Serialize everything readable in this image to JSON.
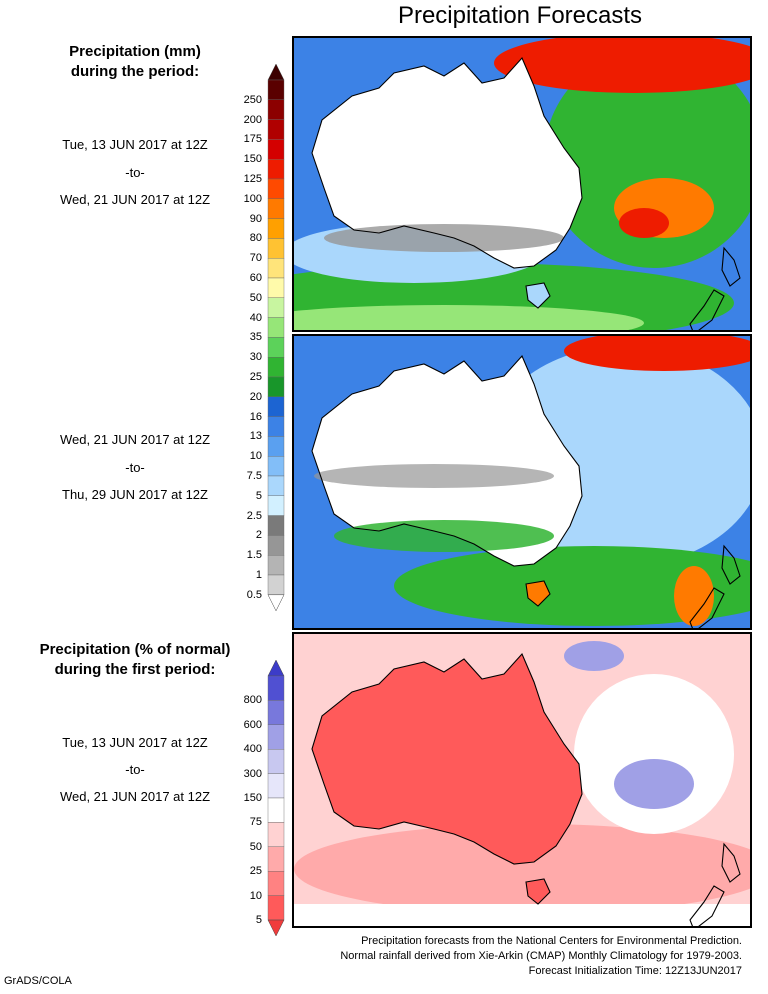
{
  "title": "Precipitation Forecasts",
  "section_amount": {
    "title_line1": "Precipitation (mm)",
    "title_line2": "during the period:"
  },
  "period1": {
    "start": "Tue, 13 JUN 2017 at 12Z",
    "separator": "-to-",
    "end": "Wed, 21 JUN 2017 at 12Z"
  },
  "period2": {
    "start": "Wed, 21 JUN 2017 at 12Z",
    "separator": "-to-",
    "end": "Thu, 29 JUN 2017 at 12Z"
  },
  "section_percent": {
    "title_line1": "Precipitation (% of normal)",
    "title_line2": "during the first period:",
    "start": "Tue, 13 JUN 2017 at 12Z",
    "separator": "-to-",
    "end": "Wed, 21 JUN 2017 at 12Z"
  },
  "amount_scale": {
    "labels": [
      "250",
      "200",
      "175",
      "150",
      "125",
      "100",
      "90",
      "80",
      "70",
      "60",
      "50",
      "40",
      "35",
      "30",
      "25",
      "20",
      "16",
      "13",
      "10",
      "7.5",
      "5",
      "2.5",
      "2",
      "1.5",
      "1",
      "0.5"
    ],
    "colors": [
      "#5a0000",
      "#8c0000",
      "#b00000",
      "#d40000",
      "#ee1c00",
      "#ff4a00",
      "#ff7a00",
      "#ffa000",
      "#ffc232",
      "#ffe47a",
      "#fffaaa",
      "#c8f5a0",
      "#96e678",
      "#5cd25a",
      "#30b432",
      "#18962a",
      "#1c64d2",
      "#3c82e6",
      "#5aa0f0",
      "#82bef8",
      "#aad7fc",
      "#d2f0ff",
      "#7a7a7a",
      "#969696",
      "#b4b4b4",
      "#d2d2d2"
    ],
    "top_arrow_color": "#3c0000",
    "bottom_arrow_color": "#ffffff"
  },
  "percent_scale": {
    "labels": [
      "800",
      "600",
      "400",
      "300",
      "150",
      "75",
      "50",
      "25",
      "10",
      "5"
    ],
    "colors": [
      "#5050d2",
      "#7878dc",
      "#a0a0e6",
      "#c8c8f0",
      "#e6e6fa",
      "#ffffff",
      "#ffd2d2",
      "#ffaaaa",
      "#ff8282",
      "#ff5a5a"
    ],
    "top_arrow_color": "#3c3cc8",
    "bottom_arrow_color": "#f03c3c"
  },
  "footer": {
    "line1": "Precipitation forecasts from the National Centers for Environmental Prediction.",
    "line2": "Normal rainfall derived from Xie-Arkin (CMAP) Monthly Climatology for 1979-2003.",
    "line3": "Forecast Initialization Time: 12Z13JUN2017"
  },
  "credit": "GrADS/COLA",
  "map_colors": {
    "ocean_blue": "#3c82e6",
    "light_blue": "#aad7fc",
    "green": "#30b432",
    "light_green": "#96e678",
    "gray": "#969696",
    "dry_white": "#ffffff",
    "red": "#ee1c00",
    "orange": "#ff7a00",
    "pct_red": "#ff5a5a",
    "pct_pink": "#ffaaaa",
    "pct_light": "#ffd2d2",
    "pct_blue": "#a0a0e6"
  }
}
